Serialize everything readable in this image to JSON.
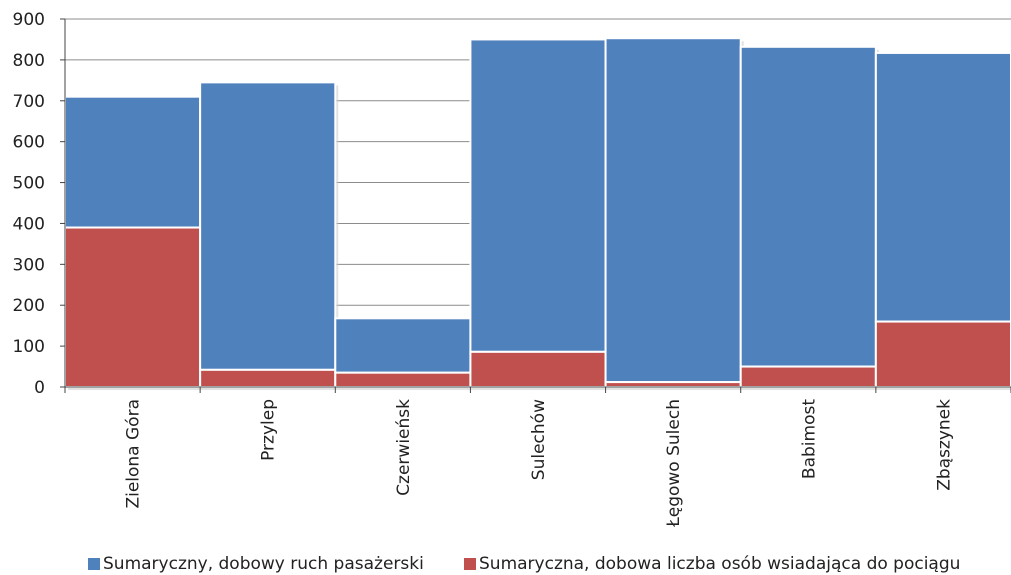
{
  "chart_data": {
    "type": "bar",
    "stacked": true,
    "categories": [
      "Zielona Góra",
      "Przylep",
      "Czerwieńsk",
      "Sulechów",
      "Łęgowo Sulech",
      "Babimost",
      "Zbąszynek"
    ],
    "series": [
      {
        "name": "Sumaryczny, dobowy ruch pasażerski",
        "color": "#4f81bd",
        "totals": [
          710,
          745,
          168,
          850,
          853,
          832,
          817
        ]
      },
      {
        "name": "Sumaryczna, dobowa liczba osób wsiadająca do pociągu",
        "color": "#c0504d",
        "values": [
          390,
          42,
          35,
          86,
          12,
          50,
          160
        ]
      }
    ],
    "yticks": [
      0,
      100,
      200,
      300,
      400,
      500,
      600,
      700,
      800,
      900
    ],
    "ylim": [
      0,
      900
    ],
    "grid": true,
    "legend_position": "bottom"
  }
}
